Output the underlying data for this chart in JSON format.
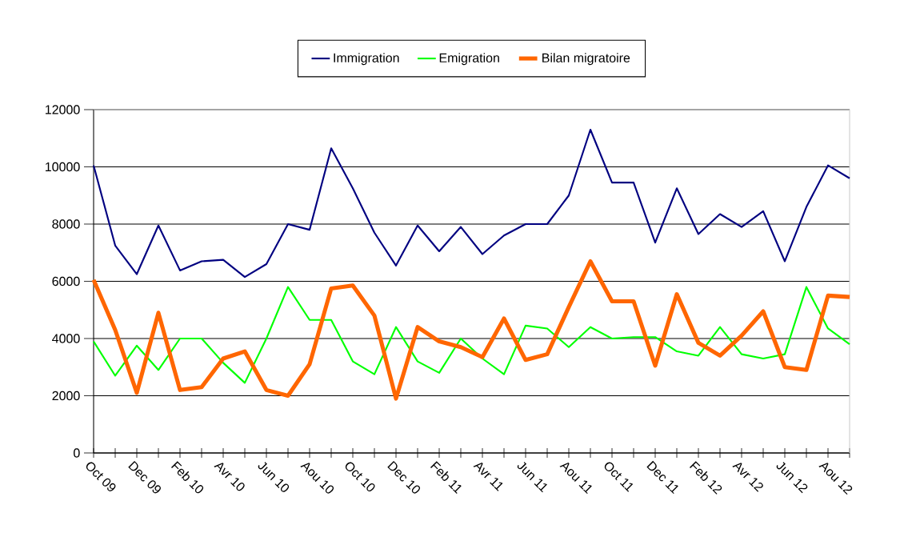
{
  "chart_data": {
    "type": "line",
    "categories": [
      "Oct 09",
      null,
      "Dec 09",
      null,
      "Feb 10",
      null,
      "Avr 10",
      null,
      "Jun 10",
      null,
      "Aou 10",
      null,
      "Oct 10",
      null,
      "Dec 10",
      null,
      "Feb 11",
      null,
      "Avr 11",
      null,
      "Jun 11",
      null,
      "Aou 11",
      null,
      "Oct 11",
      null,
      "Dec 11",
      null,
      "Feb 12",
      null,
      "Avr 12",
      null,
      "Jun 12",
      null,
      "Aou 12",
      null
    ],
    "series": [
      {
        "name": "Immigration",
        "color": "#000080",
        "values": [
          10050,
          7250,
          6250,
          7950,
          6380,
          6700,
          6750,
          6150,
          6600,
          8000,
          7800,
          10650,
          9250,
          7700,
          6550,
          7950,
          7050,
          7900,
          6950,
          7600,
          8000,
          8000,
          9000,
          11300,
          9450,
          9450,
          7350,
          9250,
          7650,
          8350,
          7900,
          8450,
          6700,
          8600,
          10050,
          9600
        ]
      },
      {
        "name": "Emigration",
        "color": "#00ff00",
        "values": [
          3900,
          2700,
          3750,
          2900,
          4000,
          4000,
          3150,
          2450,
          4000,
          5800,
          4650,
          4650,
          3200,
          2750,
          4400,
          3200,
          2800,
          4000,
          3300,
          2750,
          4450,
          4350,
          3700,
          4400,
          4000,
          4050,
          4050,
          3550,
          3400,
          4400,
          3450,
          3300,
          3450,
          5800,
          4350,
          3800
        ]
      },
      {
        "name": "Bilan migratoire",
        "color": "#ff6600",
        "values": [
          6050,
          4300,
          2100,
          4900,
          2200,
          2300,
          3300,
          3550,
          2200,
          2000,
          3100,
          5750,
          5850,
          4800,
          1900,
          4400,
          3900,
          3700,
          3350,
          4700,
          3250,
          3450,
          5100,
          6700,
          5300,
          5300,
          3050,
          5550,
          3850,
          3400,
          4100,
          4950,
          3000,
          2900,
          5500,
          5450
        ]
      }
    ],
    "ylim": [
      0,
      12000
    ],
    "yticks": [
      0,
      2000,
      4000,
      6000,
      8000,
      10000,
      12000
    ],
    "grid": "y",
    "legend": "top",
    "marker": "none",
    "line_style": "solid"
  }
}
